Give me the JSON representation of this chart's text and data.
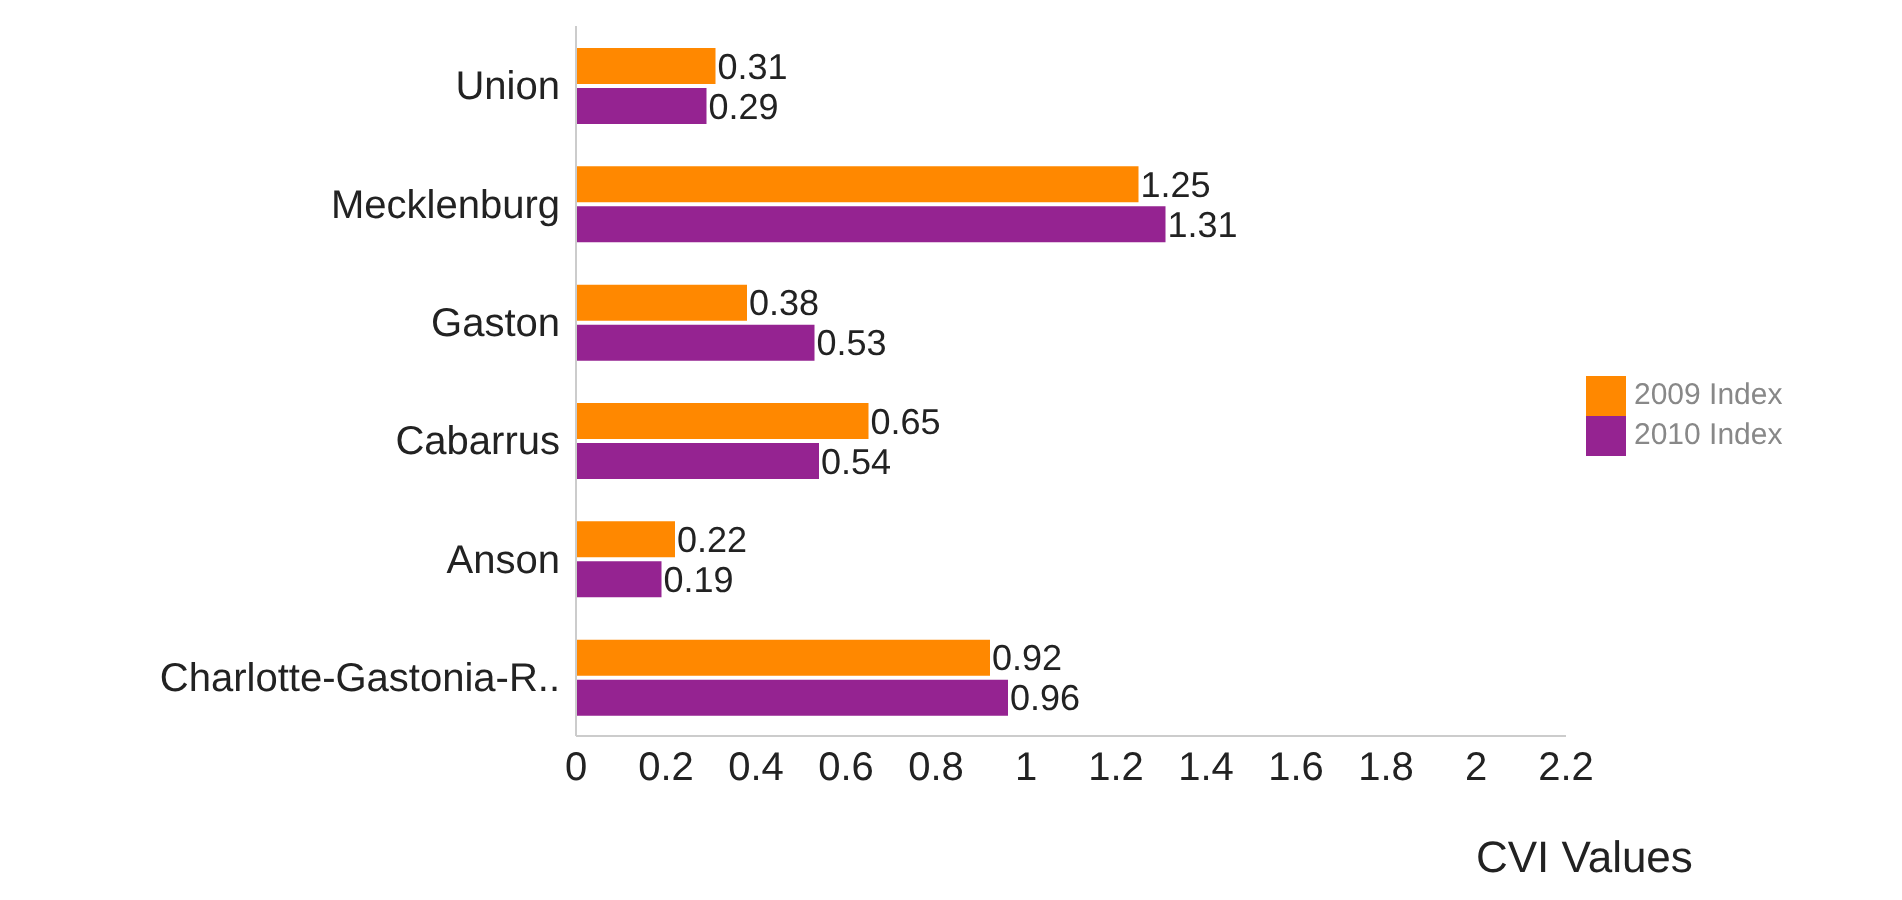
{
  "chart_data": {
    "type": "bar",
    "orientation": "horizontal",
    "xlabel": "CVI Values",
    "categories": [
      "Union",
      "Mecklenburg",
      "Gaston",
      "Cabarrus",
      "Anson",
      "Charlotte-Gastonia-R.."
    ],
    "series": [
      {
        "name": "2009 Index",
        "color": "#ff8800",
        "values": [
          0.31,
          1.25,
          0.38,
          0.65,
          0.22,
          0.92
        ]
      },
      {
        "name": "2010 Index",
        "color": "#952391",
        "values": [
          0.29,
          1.31,
          0.53,
          0.54,
          0.19,
          0.96
        ]
      }
    ],
    "xlim": [
      0,
      2.2
    ],
    "xticks": [
      0,
      0.2,
      0.4,
      0.6,
      0.8,
      1,
      1.2,
      1.4,
      1.6,
      1.8,
      2,
      2.2
    ],
    "data_labels": true,
    "legend": "right",
    "grid": false
  }
}
